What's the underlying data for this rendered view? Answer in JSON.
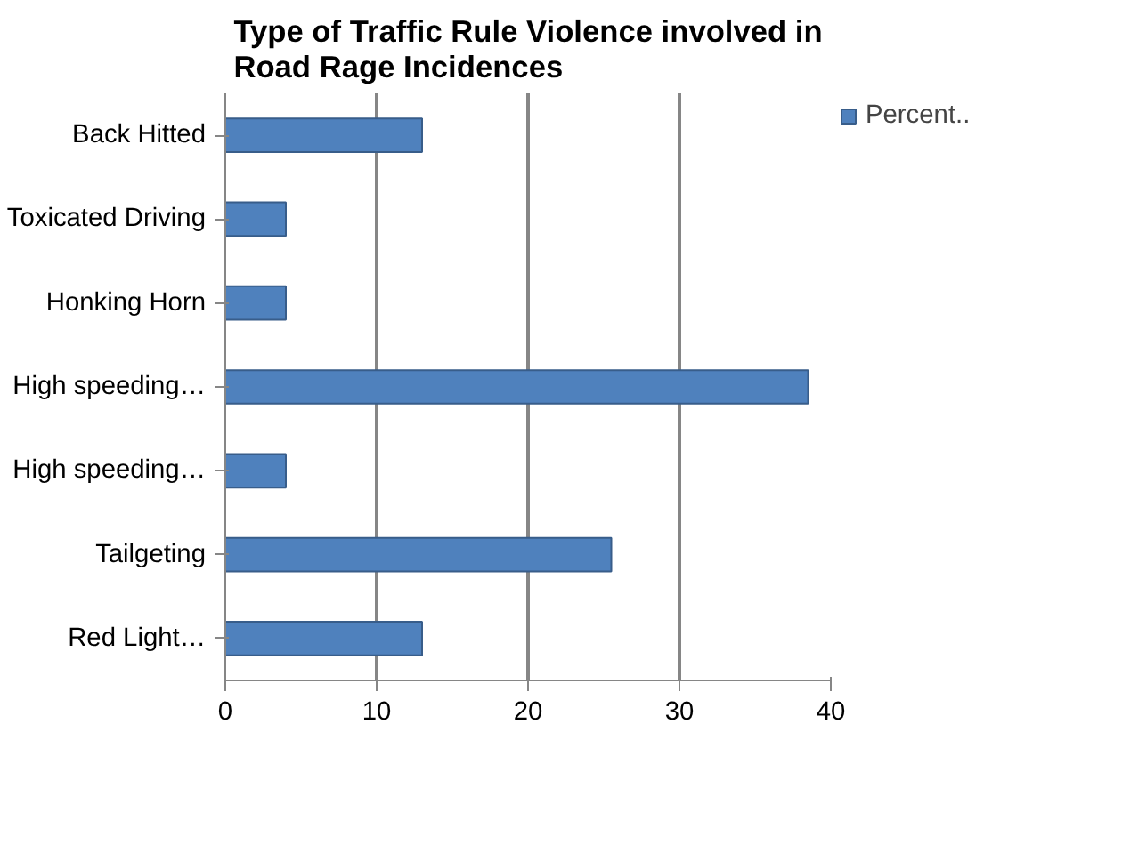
{
  "chart_data": {
    "type": "bar",
    "orientation": "horizontal",
    "title": "Type of Traffic Rule Violence involved in Road Rage Incidences",
    "categories": [
      "Back Hitted",
      "Toxicated Driving",
      "Honking Horn",
      "High speeding…",
      "High speeding…",
      "Tailgeting",
      "Red Light…"
    ],
    "series": [
      {
        "name": "Percent..",
        "color": "#4f81bd",
        "values": [
          13,
          4,
          4,
          38.5,
          4,
          25.5,
          13
        ]
      }
    ],
    "xlim": [
      0,
      40
    ],
    "xticks": [
      0,
      10,
      20,
      30,
      40
    ],
    "grid": "x",
    "legend": "right"
  }
}
